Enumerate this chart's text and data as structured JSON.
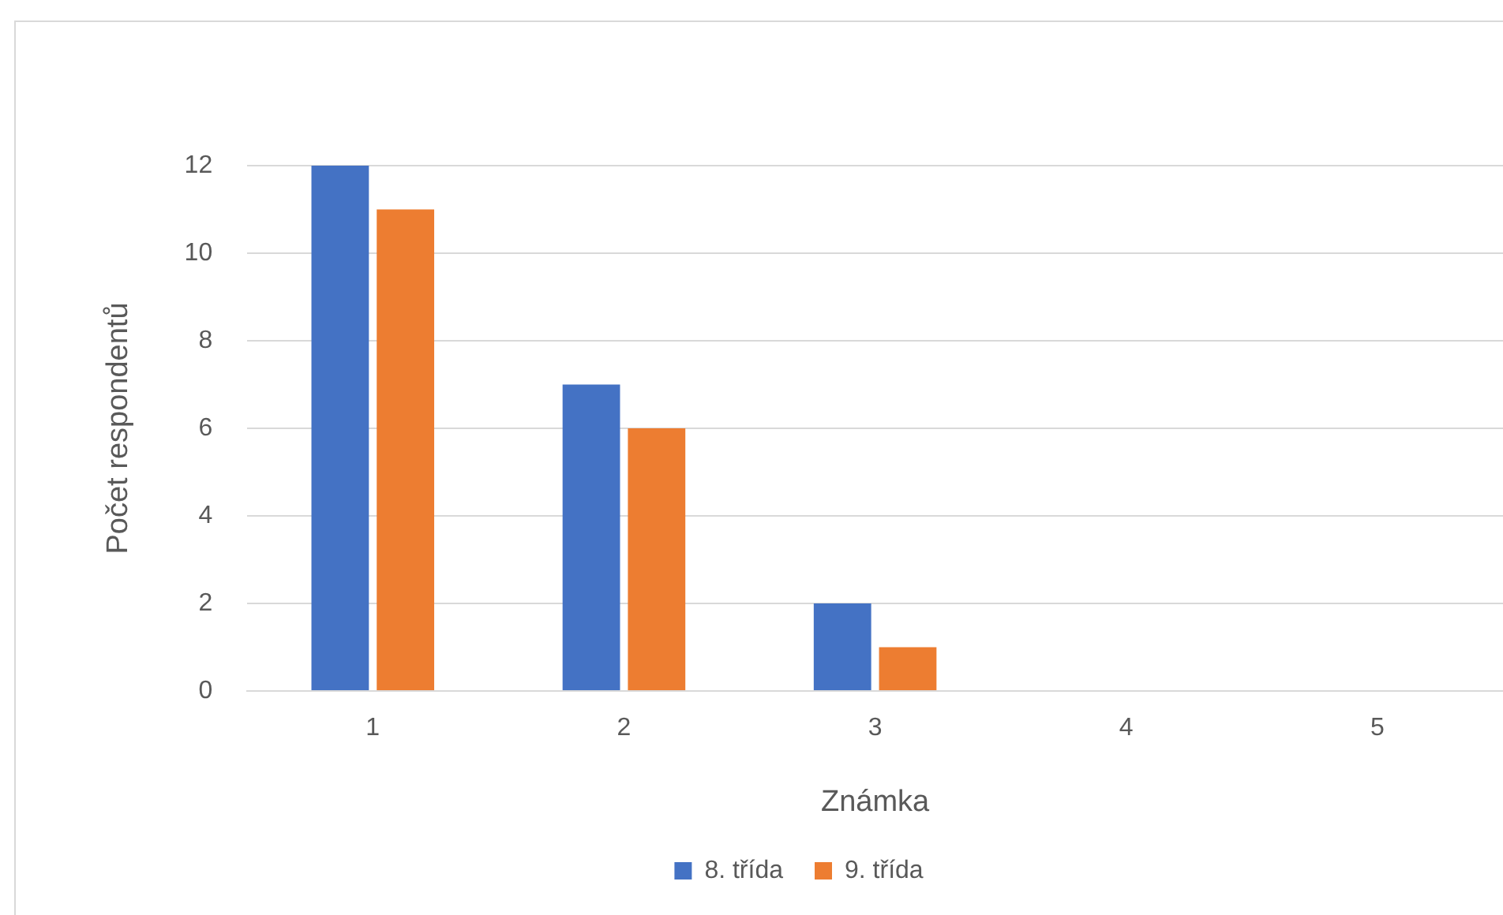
{
  "chart_data": {
    "type": "bar",
    "xlabel": "Známka",
    "ylabel": "Počet respondentů",
    "categories": [
      "1",
      "2",
      "3",
      "4",
      "5"
    ],
    "series": [
      {
        "name": "8. třída",
        "color": "#4472c4",
        "values": [
          12,
          7,
          2,
          0,
          0
        ]
      },
      {
        "name": "9. třída",
        "color": "#ed7d31",
        "values": [
          11,
          6,
          1,
          0,
          0
        ]
      }
    ],
    "ylim": [
      0,
      12
    ],
    "yticks": [
      0,
      2,
      4,
      6,
      8,
      10,
      12
    ],
    "grid": "y",
    "legend": "bottom"
  }
}
